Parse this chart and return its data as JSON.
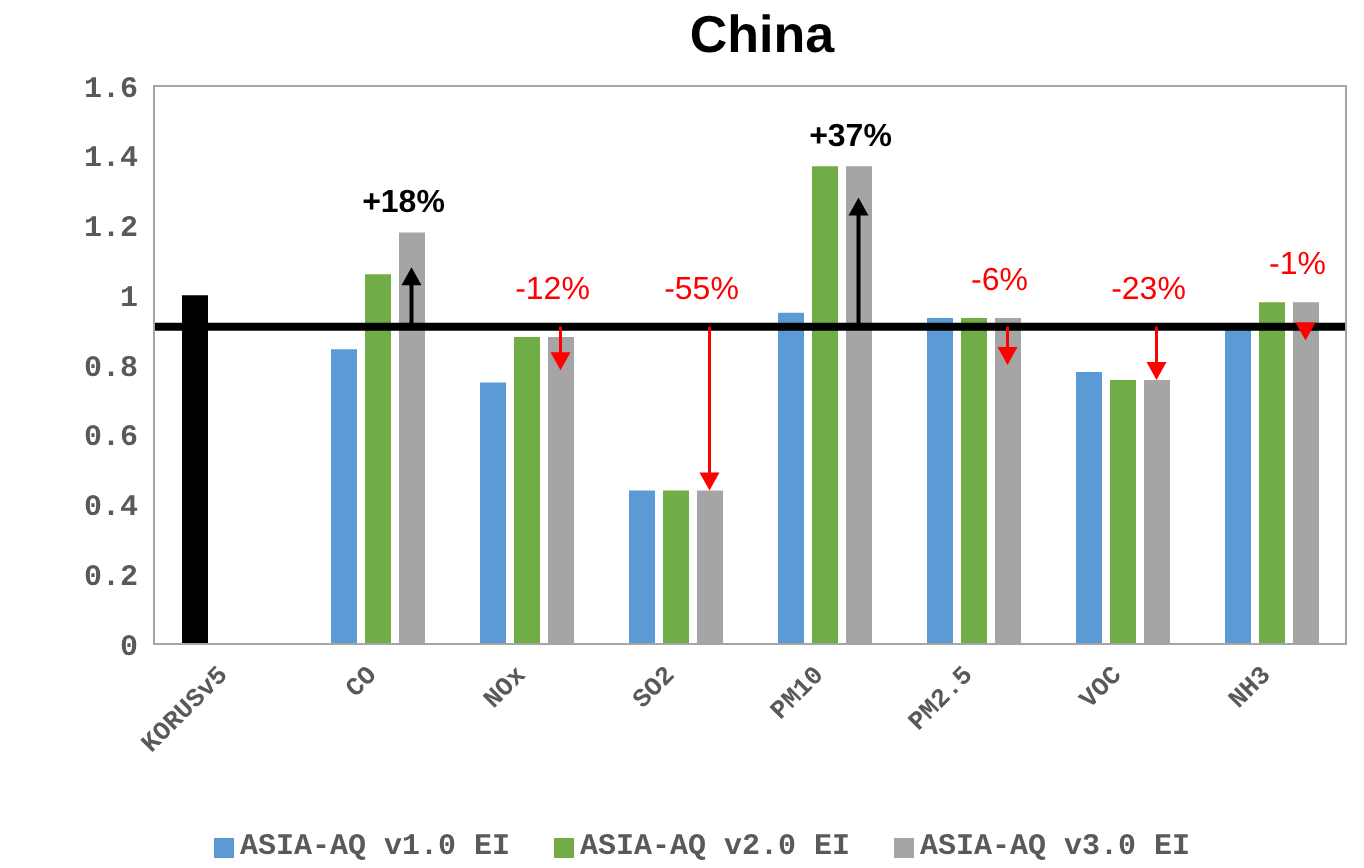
{
  "chart_data": {
    "type": "bar",
    "title": "China",
    "categories": [
      "KORUSv5",
      "CO",
      "NOx",
      "SO2",
      "PM10",
      "PM2.5",
      "VOC",
      "NH3"
    ],
    "series": [
      {
        "color": "#000000",
        "values": [
          1.0,
          null,
          null,
          null,
          null,
          null,
          null,
          null
        ]
      },
      {
        "name": "ASIA-AQ v1.0 EI",
        "color": "#5b9bd5",
        "values": [
          null,
          0.845,
          0.75,
          0.44,
          0.95,
          0.935,
          0.78,
          0.91
        ]
      },
      {
        "name": "ASIA-AQ v2.0 EI",
        "color": "#70ad47",
        "values": [
          null,
          1.06,
          0.88,
          0.44,
          1.37,
          0.935,
          0.757,
          0.98
        ]
      },
      {
        "name": "ASIA-AQ v3.0 EI",
        "color": "#a5a5a5",
        "values": [
          null,
          1.18,
          0.88,
          0.44,
          1.37,
          0.935,
          0.757,
          0.98
        ]
      }
    ],
    "ylim": [
      0,
      1.6
    ],
    "yticks": [
      0,
      0.2,
      0.4,
      0.6,
      0.8,
      1,
      1.2,
      1.4,
      1.6
    ],
    "grid": false,
    "legend": "bottom",
    "ref_lines": [
      {
        "axis": "y",
        "value": 0.91,
        "color": "#000000",
        "line_style": "solid"
      }
    ],
    "annotations": [
      {
        "text": "+18%",
        "x": "CO",
        "y": 1.08
      },
      {
        "text": "-12%",
        "x": "NOx",
        "y": 0.785
      },
      {
        "text": "-55%",
        "x": "SO2",
        "y": 0.91
      },
      {
        "text": "+37%",
        "x": "PM10",
        "y": 1.28
      },
      {
        "text": "-6%",
        "x": "PM2.5",
        "y": 0.8
      },
      {
        "text": "-23%",
        "x": "VOC",
        "y": 0.91
      },
      {
        "text": "-1%",
        "x": "NH3",
        "y": 0.87
      }
    ]
  }
}
